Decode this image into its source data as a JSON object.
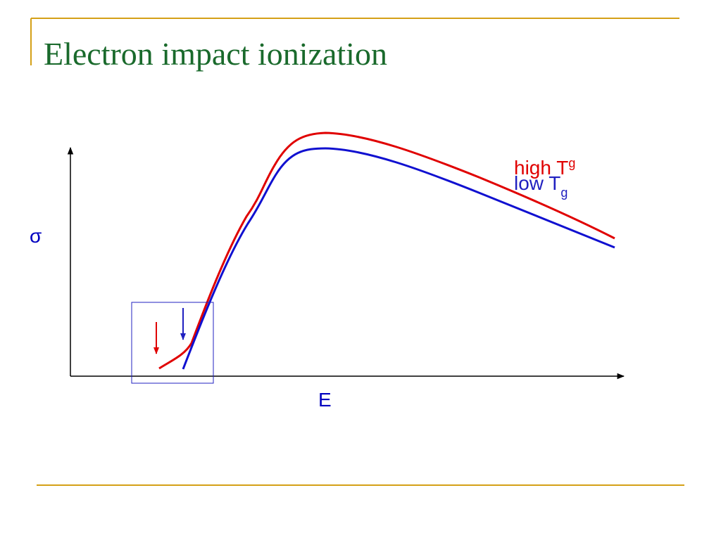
{
  "title": "Electron impact ionization",
  "diagram": {
    "y_label": "σ",
    "x_label": "E",
    "curves": [
      {
        "label": "high T",
        "subscript": "g"
      },
      {
        "label": "low T",
        "subscript": "g"
      }
    ]
  }
}
